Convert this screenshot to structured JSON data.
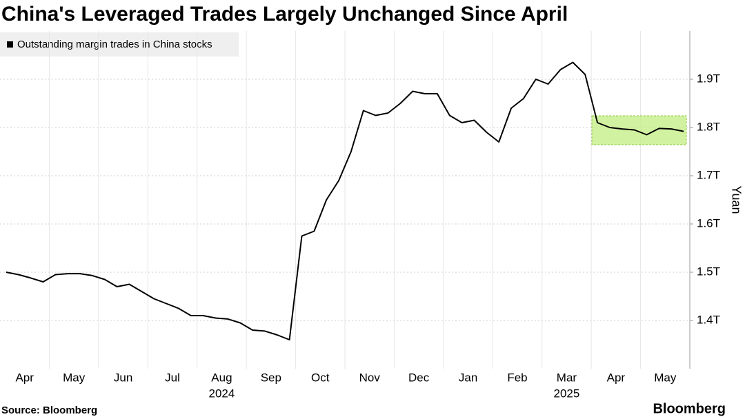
{
  "chart_data": {
    "type": "line",
    "title": "China's Leveraged Trades Largely Unchanged Since April",
    "y_label": "Yuan",
    "source": "Source: Bloomberg",
    "brand": "Bloomberg",
    "categories": [
      null,
      null,
      "Apr",
      null,
      null,
      null,
      "May",
      null,
      null,
      null,
      "Jun",
      null,
      null,
      null,
      "Jul",
      null,
      null,
      null,
      "Aug",
      null,
      null,
      null,
      "Sep",
      null,
      null,
      null,
      "Oct",
      null,
      null,
      null,
      "Nov",
      null,
      null,
      null,
      "Dec",
      null,
      null,
      null,
      "Jan",
      null,
      null,
      null,
      "Feb",
      null,
      null,
      null,
      "Mar",
      null,
      null,
      null,
      "Apr",
      null,
      null,
      null,
      "May",
      null
    ],
    "category_years": [
      null,
      null,
      null,
      null,
      null,
      null,
      null,
      null,
      null,
      null,
      null,
      null,
      null,
      null,
      null,
      null,
      null,
      null,
      "2024",
      null,
      null,
      null,
      null,
      null,
      null,
      null,
      null,
      null,
      null,
      null,
      null,
      null,
      null,
      null,
      null,
      null,
      null,
      null,
      null,
      null,
      null,
      null,
      null,
      null,
      null,
      null,
      "2025",
      null,
      null,
      null,
      null,
      null,
      null,
      null,
      null,
      null
    ],
    "series": [
      {
        "name": "Outstanding margin trades in China stocks",
        "color": "#000000",
        "values": [
          1.5,
          1.495,
          1.488,
          1.48,
          1.495,
          1.497,
          1.497,
          1.493,
          1.485,
          1.47,
          1.475,
          1.46,
          1.445,
          1.435,
          1.425,
          1.41,
          1.41,
          1.405,
          1.403,
          1.395,
          1.38,
          1.378,
          1.37,
          1.36,
          1.575,
          1.585,
          1.65,
          1.69,
          1.75,
          1.835,
          1.825,
          1.83,
          1.85,
          1.875,
          1.87,
          1.87,
          1.825,
          1.81,
          1.815,
          1.79,
          1.77,
          1.84,
          1.86,
          1.9,
          1.89,
          1.92,
          1.935,
          1.91,
          1.81,
          1.8,
          1.797,
          1.795,
          1.785,
          1.798,
          1.797,
          1.792
        ]
      }
    ],
    "ylim": [
      1.3,
      2.0
    ],
    "yticks": [
      {
        "value": 1.4,
        "label": "1.4T"
      },
      {
        "value": 1.5,
        "label": "1.5T"
      },
      {
        "value": 1.6,
        "label": "1.6T"
      },
      {
        "value": 1.7,
        "label": "1.7T"
      },
      {
        "value": 1.8,
        "label": "1.8T"
      },
      {
        "value": 1.9,
        "label": "1.9T"
      }
    ],
    "grid": true
  }
}
